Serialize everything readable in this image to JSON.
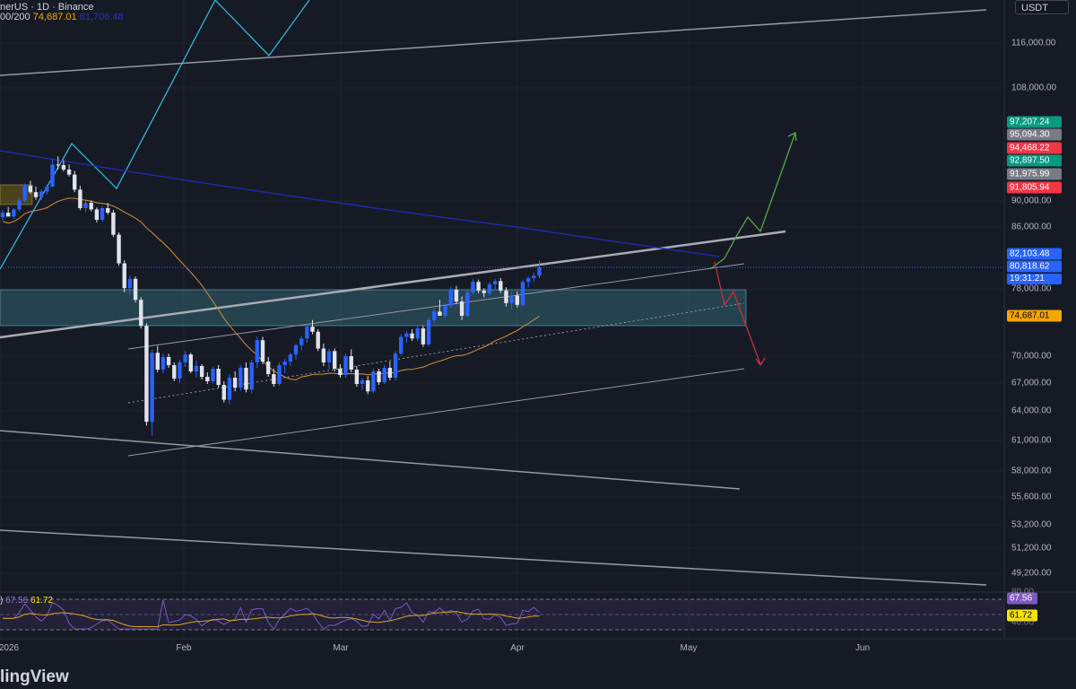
{
  "header": {
    "symbol": "nerUS · 1D · Binance",
    "ma_prefix": "00/200",
    "ma50_value": "74,687.01",
    "ma200_value": "81,706.48"
  },
  "quote_currency": "USDT",
  "rsi_header": {
    "prefix": ")",
    "rsi_value": "67.56",
    "ma_value": "61.72"
  },
  "price_axis": [
    "116,000.00",
    "108,000.00",
    "90,000.00",
    "86,000.00",
    "78,000.00",
    "70,000.00",
    "67,000.00",
    "64,000.00",
    "61,000.00",
    "58,000.00",
    "55,600.00",
    "53,200.00",
    "51,200.00",
    "49,200.00"
  ],
  "price_tags": [
    {
      "value": "97,207.24",
      "color": "#089981"
    },
    {
      "value": "95,094.30",
      "color": "#787b86"
    },
    {
      "value": "94,468.22",
      "color": "#f23645"
    },
    {
      "value": "92,897.50",
      "color": "#089981"
    },
    {
      "value": "91,975.99",
      "color": "#787b86"
    },
    {
      "value": "91,805.94",
      "color": "#f23645"
    },
    {
      "value": "82,103.48",
      "color": "#2962ff"
    },
    {
      "value": "80,818.62",
      "color": "#2962ff"
    },
    {
      "value": "19:31:21",
      "color": "#2962ff"
    },
    {
      "value": "74,687.01",
      "color": "#f7a600"
    }
  ],
  "rsi_tags": [
    {
      "value": "67.56",
      "color": "#7e57c2"
    },
    {
      "value": "61.72",
      "color": "#f7e400"
    }
  ],
  "rsi_axis": [
    "80.00",
    "40.00"
  ],
  "time_axis": [
    "2026",
    "Feb",
    "Mar",
    "Apr",
    "May",
    "Jun"
  ],
  "brand": "lingView",
  "chart_data": {
    "type": "candlestick",
    "title": "nerUS · 1D · Binance",
    "timeframe": "1D",
    "current_price": 80818.62,
    "price_line": 82103.48,
    "ma50": 74687.01,
    "rsi": 67.56,
    "rsi_ma": 61.72,
    "candles_ohlc": [
      [
        87500,
        88600,
        87100,
        88200
      ],
      [
        88200,
        89100,
        87800,
        87600
      ],
      [
        87600,
        88900,
        87300,
        88700
      ],
      [
        88700,
        90500,
        88400,
        90100
      ],
      [
        90100,
        92800,
        89800,
        92400
      ],
      [
        92400,
        93200,
        91100,
        91400
      ],
      [
        91400,
        92300,
        90200,
        90600
      ],
      [
        90600,
        91800,
        90100,
        91500
      ],
      [
        91500,
        92600,
        91000,
        92300
      ],
      [
        92300,
        96600,
        92100,
        95800
      ],
      [
        95800,
        97100,
        95000,
        95700
      ],
      [
        95700,
        96500,
        94700,
        95000
      ],
      [
        95000,
        95800,
        93900,
        94200
      ],
      [
        94200,
        94800,
        91400,
        91800
      ],
      [
        91800,
        92400,
        88600,
        88900
      ],
      [
        88900,
        90100,
        88300,
        89700
      ],
      [
        89700,
        90100,
        88400,
        88700
      ],
      [
        88700,
        89000,
        86700,
        87100
      ],
      [
        87100,
        89200,
        86800,
        88900
      ],
      [
        88900,
        89700,
        87900,
        88200
      ],
      [
        88200,
        88600,
        84700,
        85000
      ],
      [
        85000,
        85300,
        81000,
        81300
      ],
      [
        81300,
        81700,
        77600,
        78100
      ],
      [
        78100,
        79700,
        77200,
        79300
      ],
      [
        79300,
        79600,
        76400,
        76700
      ],
      [
        76700,
        77000,
        73300,
        73600
      ],
      [
        73600,
        73900,
        62500,
        62900
      ],
      [
        62900,
        70800,
        61500,
        70400
      ],
      [
        70400,
        71200,
        68200,
        68500
      ],
      [
        68500,
        70300,
        68100,
        69900
      ],
      [
        69900,
        70300,
        68700,
        69000
      ],
      [
        69000,
        69300,
        67200,
        67500
      ],
      [
        67500,
        69600,
        67000,
        69300
      ],
      [
        69300,
        70600,
        68800,
        70200
      ],
      [
        70200,
        70400,
        68100,
        68300
      ],
      [
        68300,
        69500,
        67600,
        68900
      ],
      [
        68900,
        69100,
        67400,
        67700
      ],
      [
        67700,
        68200,
        66900,
        67200
      ],
      [
        67200,
        68800,
        67000,
        68600
      ],
      [
        68600,
        69000,
        66500,
        66800
      ],
      [
        66800,
        67200,
        64900,
        65200
      ],
      [
        65200,
        68000,
        64700,
        67600
      ],
      [
        67600,
        68300,
        66100,
        66500
      ],
      [
        66500,
        69000,
        66200,
        68700
      ],
      [
        68700,
        69300,
        66000,
        66300
      ],
      [
        66300,
        69600,
        65900,
        69300
      ],
      [
        69300,
        72300,
        68700,
        71900
      ],
      [
        71900,
        72300,
        69100,
        69400
      ],
      [
        69400,
        69900,
        67700,
        68000
      ],
      [
        68000,
        68600,
        66600,
        66900
      ],
      [
        66900,
        69300,
        66700,
        69000
      ],
      [
        69000,
        69700,
        68100,
        69400
      ],
      [
        69400,
        70400,
        68900,
        70200
      ],
      [
        70200,
        71500,
        69600,
        71300
      ],
      [
        71300,
        72400,
        70700,
        72100
      ],
      [
        72100,
        73900,
        71600,
        73500
      ],
      [
        73500,
        74300,
        72600,
        72900
      ],
      [
        72900,
        73200,
        70600,
        70900
      ],
      [
        70900,
        71500,
        68900,
        69300
      ],
      [
        69300,
        70900,
        68600,
        70600
      ],
      [
        70600,
        70900,
        68300,
        68600
      ],
      [
        68600,
        69100,
        67600,
        67900
      ],
      [
        67900,
        70300,
        67600,
        70000
      ],
      [
        70000,
        70800,
        68200,
        68500
      ],
      [
        68500,
        68900,
        66600,
        66900
      ],
      [
        66900,
        67600,
        66300,
        67300
      ],
      [
        67300,
        67800,
        65800,
        66100
      ],
      [
        66100,
        68600,
        65900,
        68300
      ],
      [
        68300,
        68600,
        66800,
        67100
      ],
      [
        67100,
        69000,
        66900,
        68700
      ],
      [
        68700,
        69400,
        67300,
        67600
      ],
      [
        67600,
        70600,
        67300,
        70300
      ],
      [
        70300,
        72600,
        70100,
        72300
      ],
      [
        72300,
        73000,
        71600,
        72700
      ],
      [
        72700,
        73200,
        71800,
        72100
      ],
      [
        72100,
        73600,
        71800,
        73300
      ],
      [
        73300,
        73600,
        71100,
        71400
      ],
      [
        71400,
        74600,
        71200,
        74300
      ],
      [
        74300,
        75600,
        73900,
        75300
      ],
      [
        75300,
        76700,
        74900,
        74800
      ],
      [
        74800,
        76300,
        74500,
        76000
      ],
      [
        76000,
        78300,
        75700,
        77900
      ],
      [
        77900,
        78400,
        76200,
        76500
      ],
      [
        76500,
        77100,
        74300,
        74800
      ],
      [
        74800,
        77900,
        74600,
        77600
      ],
      [
        77600,
        79300,
        77300,
        78900
      ],
      [
        78900,
        79200,
        77500,
        77800
      ],
      [
        77800,
        78100,
        77000,
        77500
      ],
      [
        77500,
        78900,
        77200,
        78600
      ],
      [
        78600,
        79300,
        77900,
        79000
      ],
      [
        79000,
        79400,
        77500,
        77800
      ],
      [
        77800,
        78200,
        75900,
        76300
      ],
      [
        76300,
        77600,
        75600,
        77200
      ],
      [
        77200,
        77700,
        75800,
        76100
      ],
      [
        76100,
        79200,
        75900,
        78900
      ],
      [
        78900,
        79600,
        78200,
        79400
      ],
      [
        79400,
        80100,
        78900,
        79700
      ],
      [
        79700,
        81700,
        79400,
        80819
      ]
    ],
    "ylim": [
      46000,
      120000
    ],
    "x_labels": [
      "2026",
      "Feb",
      "Mar",
      "Apr",
      "May",
      "Jun"
    ],
    "rsi_range": [
      40,
      80
    ]
  }
}
